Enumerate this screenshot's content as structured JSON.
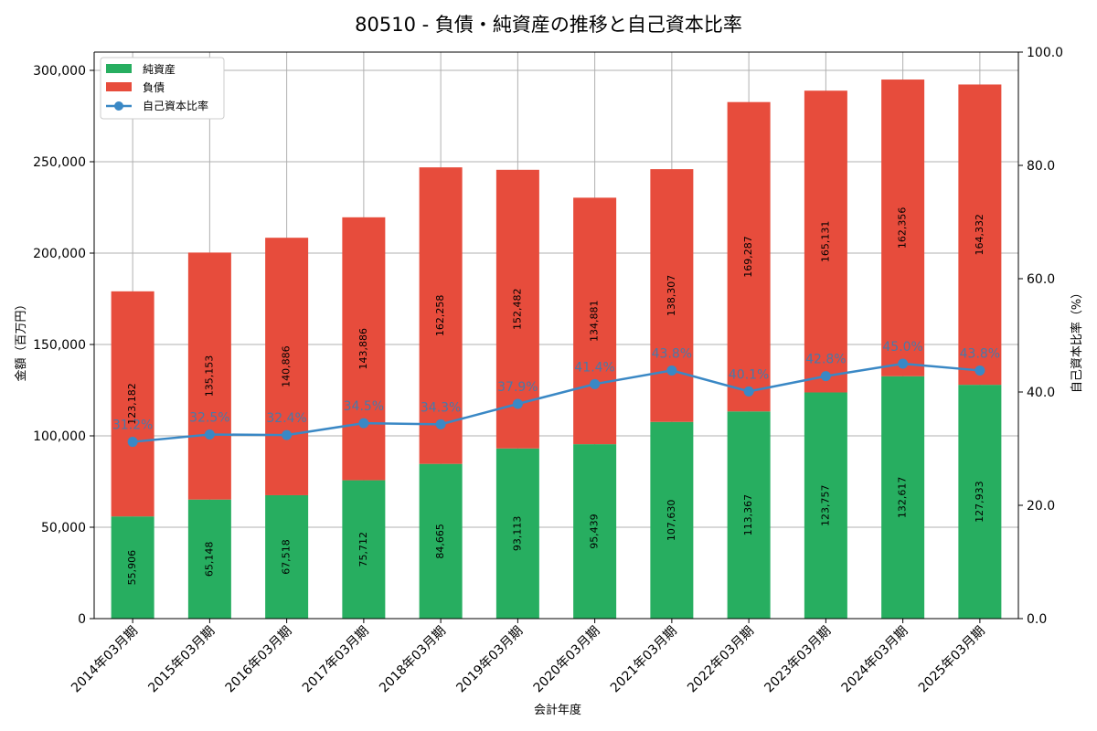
{
  "chart_data": {
    "type": "bar",
    "stacked": true,
    "title": "80510 - 負債・純資産の推移と自己資本比率",
    "xlabel": "会計年度",
    "ylabel": "金額（百万円）",
    "y2label": "自己資本比率（%）",
    "ylim": [
      0,
      310000
    ],
    "y2lim": [
      0,
      100
    ],
    "yticks": [
      "0",
      "50,000",
      "100,000",
      "150,000",
      "200,000",
      "250,000",
      "300,000"
    ],
    "y2ticks": [
      "0.0",
      "20.0",
      "40.0",
      "60.0",
      "80.0",
      "100.0"
    ],
    "grid": true,
    "legend_position": "top-left",
    "categories": [
      "2014年03月期",
      "2015年03月期",
      "2016年03月期",
      "2017年03月期",
      "2018年03月期",
      "2019年03月期",
      "2020年03月期",
      "2021年03月期",
      "2022年03月期",
      "2023年03月期",
      "2024年03月期",
      "2025年03月期"
    ],
    "series": [
      {
        "name": "純資産",
        "kind": "bar",
        "color": "#27ae60",
        "values": [
          55906,
          65148,
          67518,
          75712,
          84665,
          93113,
          95439,
          107630,
          113367,
          123757,
          132617,
          127933
        ],
        "labels": [
          "55,906",
          "65,148",
          "67,518",
          "75,712",
          "84,665",
          "93,113",
          "95,439",
          "107,630",
          "113,367",
          "123,757",
          "132,617",
          "127,933"
        ]
      },
      {
        "name": "負債",
        "kind": "bar",
        "color": "#e74c3c",
        "values": [
          123182,
          135153,
          140886,
          143886,
          162258,
          152482,
          134881,
          138307,
          169287,
          165131,
          162356,
          164332
        ],
        "labels": [
          "123,182",
          "135,153",
          "140,886",
          "143,886",
          "162,258",
          "152,482",
          "134,881",
          "138,307",
          "169,287",
          "165,131",
          "162,356",
          "164,332"
        ]
      },
      {
        "name": "自己資本比率",
        "kind": "line",
        "axis": "right",
        "color": "#3a88c5",
        "values": [
          31.2,
          32.5,
          32.4,
          34.5,
          34.3,
          37.9,
          41.4,
          43.8,
          40.1,
          42.8,
          45.0,
          43.8
        ],
        "labels": [
          "31.2%",
          "32.5%",
          "32.4%",
          "34.5%",
          "34.3%",
          "37.9%",
          "41.4%",
          "43.8%",
          "40.1%",
          "42.8%",
          "45.0%",
          "43.8%"
        ]
      }
    ]
  }
}
